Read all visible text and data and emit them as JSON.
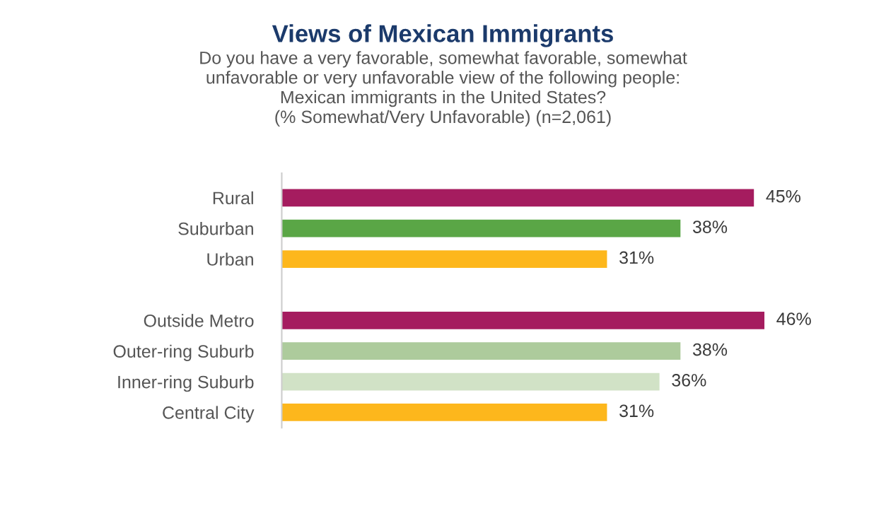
{
  "chart_data": {
    "type": "bar",
    "orientation": "horizontal",
    "title": "Views of Mexican Immigrants",
    "subtitle": "Do you have a very favorable, somewhat favorable, somewhat\nunfavorable or very unfavorable view of the following people:\nMexican immigrants in the United States?\n(% Somewhat/Very Unfavorable) (n=2,061)",
    "categories": [
      "Rural",
      "Suburban",
      "Urban",
      null,
      "Outside Metro",
      "Outer-ring Suburb",
      "Inner-ring Suburb",
      "Central City"
    ],
    "values": [
      45,
      38,
      31,
      null,
      46,
      38,
      36,
      31
    ],
    "colors": [
      "#a51c5f",
      "#5aa646",
      "#fdb71c",
      null,
      "#a51c5f",
      "#adcb9c",
      "#d1e2c6",
      "#fdb71c"
    ],
    "value_labels": [
      "45%",
      "38%",
      "31%",
      null,
      "46%",
      "38%",
      "36%",
      "31%"
    ],
    "tick_labels": "y",
    "grid": false,
    "legend": false
  }
}
